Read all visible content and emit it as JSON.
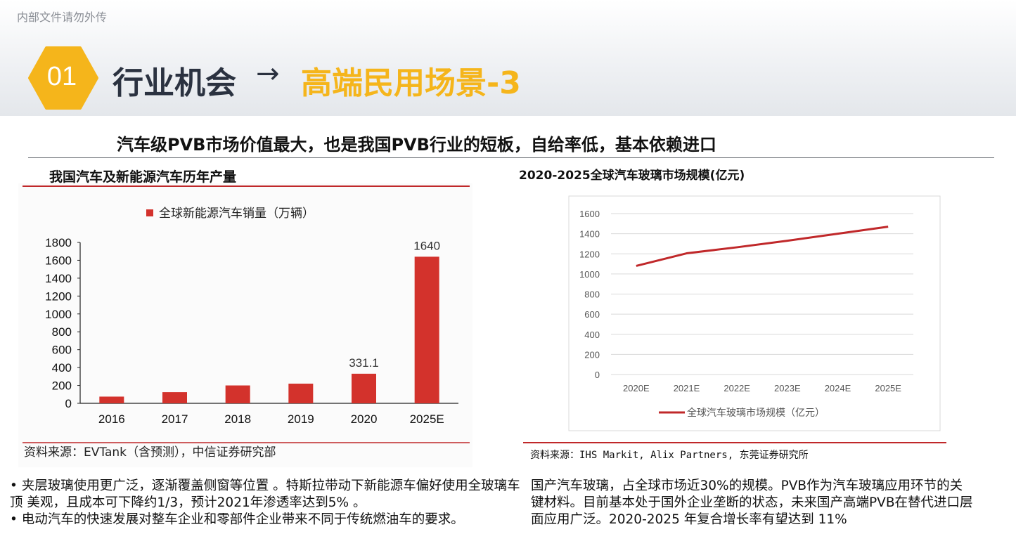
{
  "header": {
    "watermark": "内部文件请勿外传",
    "badge_number": "01",
    "title_main": "行业机会",
    "title_arrow": "→",
    "title_highlight": "高端民用场景-3"
  },
  "subtitle": "汽车级PVB市场价值最大，也是我国PVB行业的短板，自给率低，基本依赖进口",
  "left_panel": {
    "title": "我国汽车及新能源汽车历年产量",
    "legend": "全球新能源汽车销量（万辆）",
    "source": "资料来源：EVTank（含预测），中信证券研究部"
  },
  "right_panel": {
    "title": "2020-2025全球汽车玻璃市场规模(亿元)",
    "source": "资料来源：IHS Markit, Alix Partners, 东莞证券研究所"
  },
  "bottom_left": {
    "bullet_1": "• 夹层玻璃使用更广泛，逐渐覆盖侧窗等位置 。特斯拉带动下新能源车偏好使用全玻璃车顶 美观，且成本可下降约1/3，预计2021年渗透率达到5% 。",
    "bullet_2": "•  电动汽车的快速发展对整车企业和零部件企业带来不同于传统燃油车的要求。"
  },
  "bottom_right": {
    "text": "国产汽车玻璃，占全球市场近30%的规模。PVB作为汽车玻璃应用环节的关键材料。目前基本处于国外企业垄断的状态，未来国产高端PVB在替代进口层面应用广泛。2020-2025 年复合增长率有望达到 11%"
  },
  "colors": {
    "accent": "#f5b51b",
    "title_dark": "#2b3240",
    "bar_red": "#d3322c",
    "line_red": "#c0282a"
  },
  "chart_data": [
    {
      "type": "bar",
      "categories": [
        "2016",
        "2017",
        "2018",
        "2019",
        "2020",
        "2025E"
      ],
      "series": [
        {
          "name": "全球新能源汽车销量（万辆）",
          "values": [
            75,
            125,
            200,
            220,
            331.1,
            1640
          ]
        }
      ],
      "data_labels": {
        "4": "331.1",
        "5": "1640"
      },
      "yticks": [
        "0",
        "200",
        "400",
        "600",
        "800",
        "1000",
        "1200",
        "1400",
        "1600",
        "1800"
      ],
      "ylim": [
        0,
        1800
      ],
      "grid": false,
      "legend_position": "top"
    },
    {
      "type": "line",
      "categories": [
        "2020E",
        "2021E",
        "2022E",
        "2023E",
        "2024E",
        "2025E"
      ],
      "series": [
        {
          "name": "全球汽车玻璃市场规模（亿元）",
          "values": [
            1080,
            1205,
            1265,
            1330,
            1400,
            1470
          ]
        }
      ],
      "yticks": [
        "0",
        "200",
        "400",
        "600",
        "800",
        "1000",
        "1200",
        "1400",
        "1600"
      ],
      "ylim": [
        0,
        1600
      ],
      "grid": true,
      "legend_position": "bottom"
    }
  ]
}
